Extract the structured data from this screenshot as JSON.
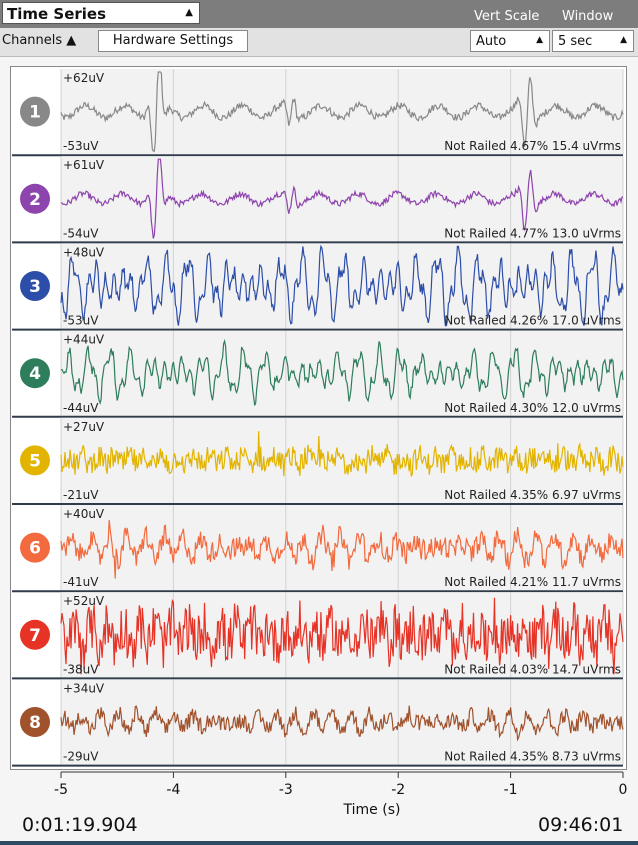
{
  "widget": {
    "title": "Time Series",
    "vert_scale_label": "Vert Scale",
    "window_label": "Window",
    "channels_label": "Channels",
    "hardware_settings_label": "Hardware Settings",
    "vert_scale_value": "Auto",
    "window_value": "5 sec",
    "elapsed_time": "0:01:19.904",
    "clock_time": "09:46:01",
    "x_axis_label": "Time (s)",
    "x_ticks": [
      "-5",
      "-4",
      "-3",
      "-2",
      "-1",
      "0"
    ]
  },
  "channels": [
    {
      "number": "1",
      "color": "#888888",
      "max_label": "+62uV",
      "min_label": "-53uV",
      "status": "Not Railed 4.67% 15.4 uVrms",
      "rms": 15.4,
      "style": "slow"
    },
    {
      "number": "2",
      "color": "#8e44ad",
      "max_label": "+61uV",
      "min_label": "-54uV",
      "status": "Not Railed 4.77% 13.0 uVrms",
      "rms": 13.0,
      "style": "slow"
    },
    {
      "number": "3",
      "color": "#2d4ea8",
      "max_label": "+48uV",
      "min_label": "-53uV",
      "status": "Not Railed 4.26% 17.0 uVrms",
      "rms": 17.0,
      "style": "wave"
    },
    {
      "number": "4",
      "color": "#2e7d5b",
      "max_label": "+44uV",
      "min_label": "-44uV",
      "status": "Not Railed 4.30% 12.0 uVrms",
      "rms": 12.0,
      "style": "wave"
    },
    {
      "number": "5",
      "color": "#e2b400",
      "max_label": "+27uV",
      "min_label": "-21uV",
      "status": "Not Railed 4.35% 6.97 uVrms",
      "rms": 6.97,
      "style": "noisy"
    },
    {
      "number": "6",
      "color": "#f26a3d",
      "max_label": "+40uV",
      "min_label": "-41uV",
      "status": "Not Railed 4.21% 11.7 uVrms",
      "rms": 11.7,
      "style": "mixed"
    },
    {
      "number": "7",
      "color": "#e63326",
      "max_label": "+52uV",
      "min_label": "-38uV",
      "status": "Not Railed 4.03% 14.7 uVrms",
      "rms": 14.7,
      "style": "noisy"
    },
    {
      "number": "8",
      "color": "#a0522d",
      "max_label": "+34uV",
      "min_label": "-29uV",
      "status": "Not Railed 4.35% 8.73 uVrms",
      "rms": 8.73,
      "style": "mixed"
    }
  ]
}
